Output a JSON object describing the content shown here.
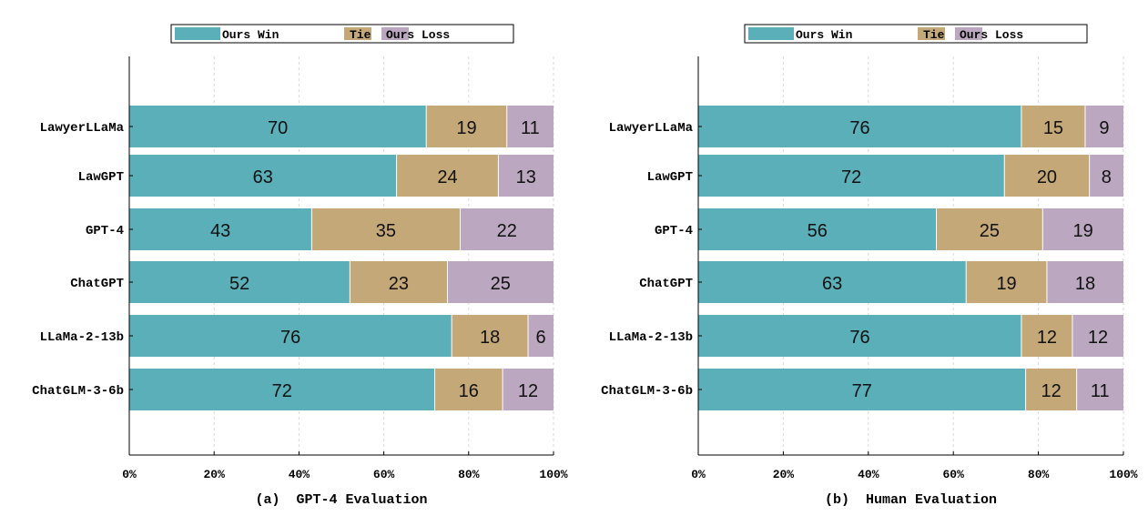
{
  "colors": {
    "win": "#5aafb9",
    "tie": "#c4a878",
    "loss": "#bba7c0",
    "grid": "#d9d9d9",
    "axis": "#000000"
  },
  "chart_data": [
    {
      "type": "bar",
      "orientation": "horizontal",
      "stacked": true,
      "caption": "(a)  GPT-4 Evaluation",
      "categories": [
        "LawyerLLaMa",
        "LawGPT",
        "GPT-4",
        "ChatGPT",
        "LLaMa-2-13b",
        "ChatGLM-3-6b"
      ],
      "series": [
        {
          "name": "Ours Win",
          "values": [
            70,
            63,
            43,
            52,
            76,
            72
          ]
        },
        {
          "name": "Tie",
          "values": [
            19,
            24,
            35,
            23,
            18,
            16
          ]
        },
        {
          "name": "Ours Loss",
          "values": [
            11,
            13,
            22,
            25,
            6,
            12
          ]
        }
      ],
      "xlim": [
        0,
        100
      ],
      "xticks": [
        "0%",
        "20%",
        "40%",
        "60%",
        "80%",
        "100%"
      ],
      "grid": true,
      "legend": "top-center"
    },
    {
      "type": "bar",
      "orientation": "horizontal",
      "stacked": true,
      "caption": "(b)  Human Evaluation",
      "categories": [
        "LawyerLLaMa",
        "LawGPT",
        "GPT-4",
        "ChatGPT",
        "LLaMa-2-13b",
        "ChatGLM-3-6b"
      ],
      "series": [
        {
          "name": "Ours Win",
          "values": [
            76,
            72,
            56,
            63,
            76,
            77
          ]
        },
        {
          "name": "Tie",
          "values": [
            15,
            20,
            25,
            19,
            12,
            12
          ]
        },
        {
          "name": "Ours Loss",
          "values": [
            9,
            8,
            19,
            18,
            12,
            11
          ]
        }
      ],
      "xlim": [
        0,
        100
      ],
      "xticks": [
        "0%",
        "20%",
        "40%",
        "60%",
        "80%",
        "100%"
      ],
      "grid": true,
      "legend": "top-center"
    }
  ]
}
